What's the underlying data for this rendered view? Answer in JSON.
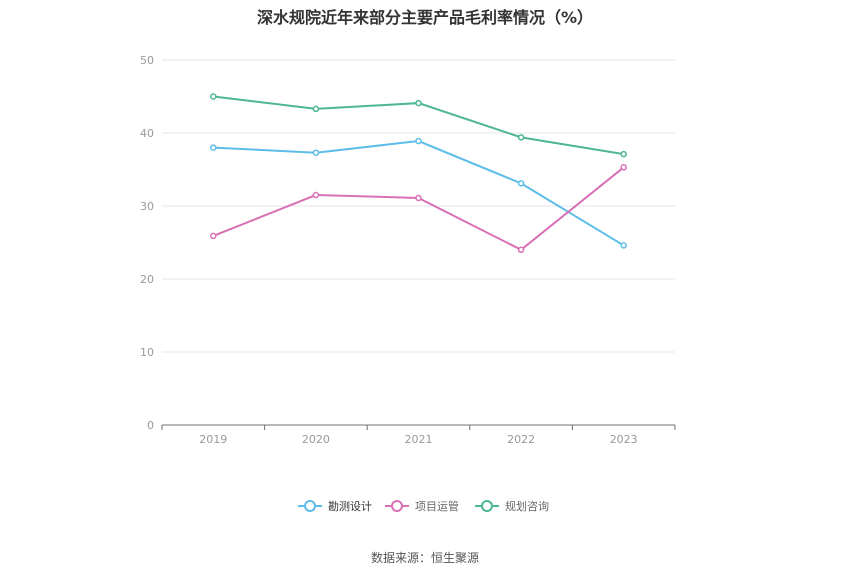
{
  "chart_data": {
    "type": "line",
    "title": "深水规院近年来部分主要产品毛利率情况（%）",
    "categories": [
      "2019",
      "2020",
      "2021",
      "2022",
      "2023"
    ],
    "ylim": [
      0,
      50
    ],
    "yticks": [
      0,
      10,
      20,
      30,
      40,
      50
    ],
    "ytick_labels": [
      "0",
      "10",
      "20",
      "30",
      "40",
      "50"
    ],
    "grid": true,
    "legend_position": "bottom",
    "series": [
      {
        "name": "勘测设计",
        "color": "#5bbde8",
        "values": [
          38.0,
          37.3,
          38.9,
          33.1,
          24.6
        ]
      },
      {
        "name": "项目运管",
        "color": "#d96fb5",
        "values": [
          25.9,
          31.5,
          31.1,
          24.0,
          35.3
        ]
      },
      {
        "name": "规划咨询",
        "color": "#4db694",
        "values": [
          45.0,
          43.3,
          44.1,
          39.4,
          37.1
        ]
      }
    ]
  },
  "source": "数据来源：恒生聚源"
}
